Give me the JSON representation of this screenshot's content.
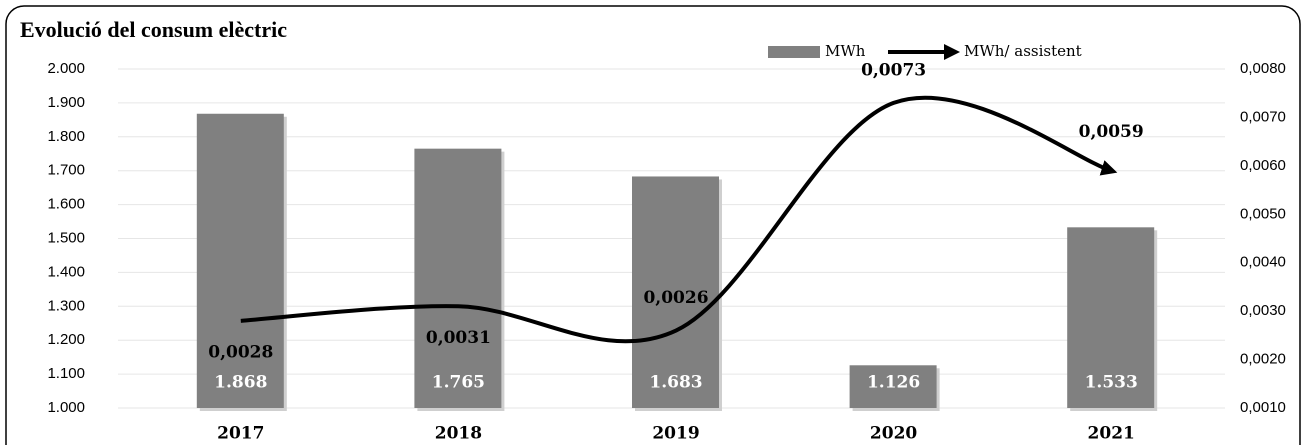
{
  "chart_data": {
    "type": "bar_line",
    "title": "Evolució del consum elèctric",
    "categories": [
      "2017",
      "2018",
      "2019",
      "2020",
      "2021"
    ],
    "series": [
      {
        "name": "MWh",
        "type": "bar",
        "color": "#808080",
        "values": [
          1868,
          1765,
          1683,
          1126,
          1533
        ],
        "value_labels": [
          "1.868",
          "1.765",
          "1.683",
          "1.126",
          "1.533"
        ]
      },
      {
        "name": "MWh/ assistent",
        "type": "line",
        "axis": "y2",
        "color": "#000000",
        "values": [
          0.0028,
          0.0031,
          0.0026,
          0.0073,
          0.0059
        ],
        "value_labels": [
          "0,0028",
          "0,0031",
          "0,0026",
          "0,0073",
          "0,0059"
        ]
      }
    ],
    "ylim": [
      1000,
      2000
    ],
    "yticks": [
      {
        "value": 1000,
        "label": "1.000"
      },
      {
        "value": 1100,
        "label": "1.100"
      },
      {
        "value": 1200,
        "label": "1.200"
      },
      {
        "value": 1300,
        "label": "1.300"
      },
      {
        "value": 1400,
        "label": "1.400"
      },
      {
        "value": 1500,
        "label": "1.500"
      },
      {
        "value": 1600,
        "label": "1.600"
      },
      {
        "value": 1700,
        "label": "1.700"
      },
      {
        "value": 1800,
        "label": "1.800"
      },
      {
        "value": 1900,
        "label": "1.900"
      },
      {
        "value": 2000,
        "label": "2.000"
      }
    ],
    "y2lim": [
      0.001,
      0.008
    ],
    "y2ticks": [
      {
        "value": 0.001,
        "label": "0,0010"
      },
      {
        "value": 0.002,
        "label": "0,0020"
      },
      {
        "value": 0.003,
        "label": "0,0030"
      },
      {
        "value": 0.004,
        "label": "0,0040"
      },
      {
        "value": 0.005,
        "label": "0,0050"
      },
      {
        "value": 0.006,
        "label": "0,0060"
      },
      {
        "value": 0.007,
        "label": "0,0070"
      },
      {
        "value": 0.008,
        "label": "0,0080"
      }
    ],
    "grid": true,
    "legend": "top"
  }
}
